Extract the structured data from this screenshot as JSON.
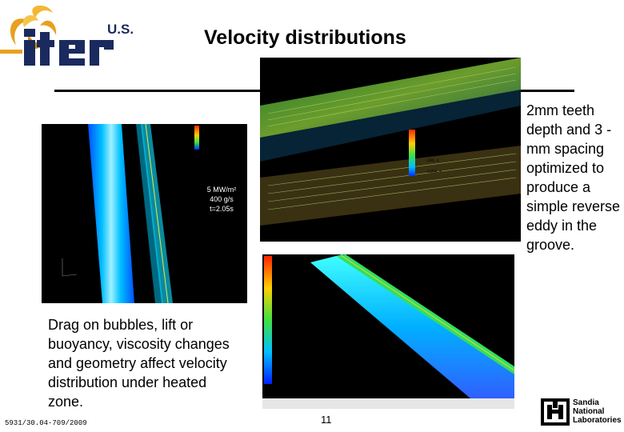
{
  "header": {
    "title": "Velocity distributions",
    "logo_text": "iter",
    "logo_country": "U.S."
  },
  "sidebar_text": {
    "right": "2mm teeth depth and 3 -mm spacing optimized to produce a simple reverse eddy in the groove.",
    "left": "Drag on bubbles, lift or buoyancy, viscosity changes and geometry affect velocity distribution under heated zone."
  },
  "figures": {
    "left_annotation": [
      "5 MW/m²",
      "400 g/s",
      "t=2.05s"
    ],
    "top_right_scale": [
      "927.2",
      "68.1",
      "-281.1",
      "-1354.4"
    ]
  },
  "footer": {
    "doc_id": "5931/30.04-709/2009",
    "page_number": "11",
    "lab_name": [
      "Sandia",
      "National",
      "Laboratories"
    ]
  },
  "colors": {
    "logo_orange": "#e8a020",
    "logo_navy": "#1a2a5e",
    "rule": "#000000"
  }
}
